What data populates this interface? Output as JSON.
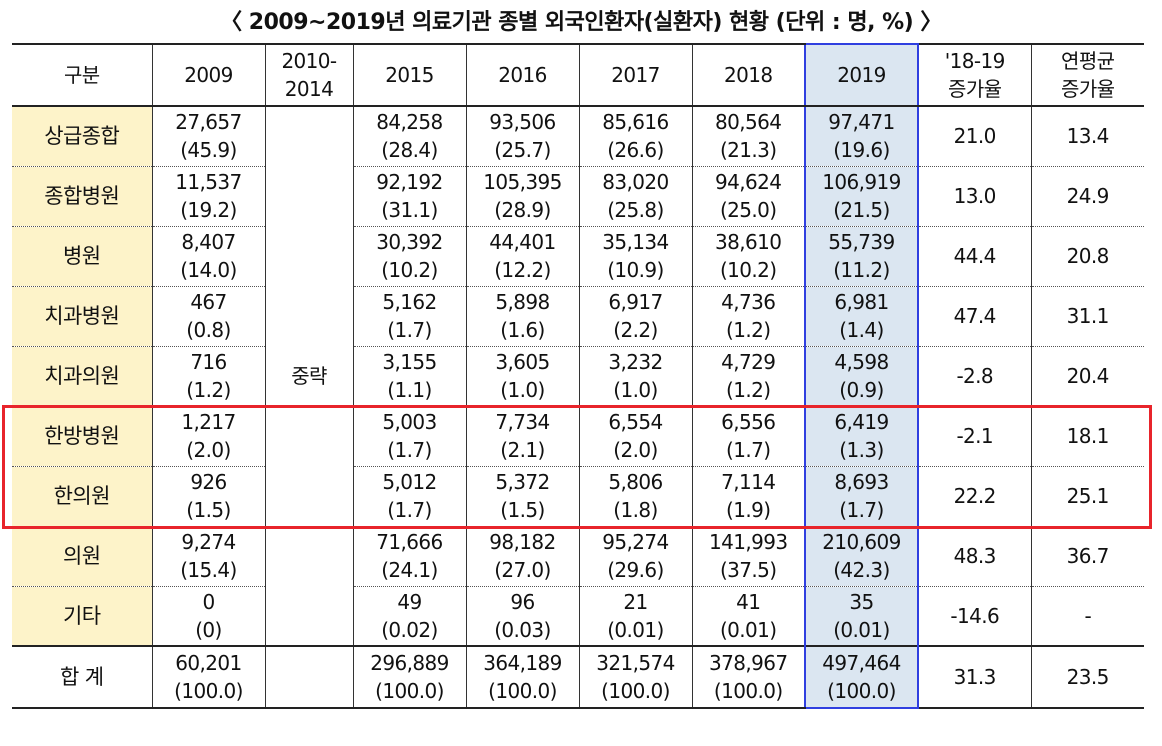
{
  "title": "〈 2009~2019년 의료기관 종별 외국인환자(실환자) 현황 (단위 : 명, %) 〉",
  "headers": {
    "category": "구분",
    "y2009": "2009",
    "y2010_2014_line1": "2010-",
    "y2010_2014_line2": "2014",
    "y2015": "2015",
    "y2016": "2016",
    "y2017": "2017",
    "y2018": "2018",
    "y2019": "2019",
    "growth_line1": "'18-19",
    "growth_line2": "증가율",
    "cagr_line1": "연평균",
    "cagr_line2": "증가율"
  },
  "omitted_label": "중략",
  "rows": [
    {
      "label": "상급종합",
      "y2009": [
        "27,657",
        "(45.9)"
      ],
      "y2015": [
        "84,258",
        "(28.4)"
      ],
      "y2016": [
        "93,506",
        "(25.7)"
      ],
      "y2017": [
        "85,616",
        "(26.6)"
      ],
      "y2018": [
        "80,564",
        "(21.3)"
      ],
      "y2019": [
        "97,471",
        "(19.6)"
      ],
      "growth": "21.0",
      "cagr": "13.4"
    },
    {
      "label": "종합병원",
      "y2009": [
        "11,537",
        "(19.2)"
      ],
      "y2015": [
        "92,192",
        "(31.1)"
      ],
      "y2016": [
        "105,395",
        "(28.9)"
      ],
      "y2017": [
        "83,020",
        "(25.8)"
      ],
      "y2018": [
        "94,624",
        "(25.0)"
      ],
      "y2019": [
        "106,919",
        "(21.5)"
      ],
      "growth": "13.0",
      "cagr": "24.9"
    },
    {
      "label": "병원",
      "y2009": [
        "8,407",
        "(14.0)"
      ],
      "y2015": [
        "30,392",
        "(10.2)"
      ],
      "y2016": [
        "44,401",
        "(12.2)"
      ],
      "y2017": [
        "35,134",
        "(10.9)"
      ],
      "y2018": [
        "38,610",
        "(10.2)"
      ],
      "y2019": [
        "55,739",
        "(11.2)"
      ],
      "growth": "44.4",
      "cagr": "20.8"
    },
    {
      "label": "치과병원",
      "y2009": [
        "467",
        "(0.8)"
      ],
      "y2015": [
        "5,162",
        "(1.7)"
      ],
      "y2016": [
        "5,898",
        "(1.6)"
      ],
      "y2017": [
        "6,917",
        "(2.2)"
      ],
      "y2018": [
        "4,736",
        "(1.2)"
      ],
      "y2019": [
        "6,981",
        "(1.4)"
      ],
      "growth": "47.4",
      "cagr": "31.1"
    },
    {
      "label": "치과의원",
      "y2009": [
        "716",
        "(1.2)"
      ],
      "y2015": [
        "3,155",
        "(1.1)"
      ],
      "y2016": [
        "3,605",
        "(1.0)"
      ],
      "y2017": [
        "3,232",
        "(1.0)"
      ],
      "y2018": [
        "4,729",
        "(1.2)"
      ],
      "y2019": [
        "4,598",
        "(0.9)"
      ],
      "growth": "-2.8",
      "cagr": "20.4"
    },
    {
      "label": "한방병원",
      "y2009": [
        "1,217",
        "(2.0)"
      ],
      "y2015": [
        "5,003",
        "(1.7)"
      ],
      "y2016": [
        "7,734",
        "(2.1)"
      ],
      "y2017": [
        "6,554",
        "(2.0)"
      ],
      "y2018": [
        "6,556",
        "(1.7)"
      ],
      "y2019": [
        "6,419",
        "(1.3)"
      ],
      "growth": "-2.1",
      "cagr": "18.1"
    },
    {
      "label": "한의원",
      "y2009": [
        "926",
        "(1.5)"
      ],
      "y2015": [
        "5,012",
        "(1.7)"
      ],
      "y2016": [
        "5,372",
        "(1.5)"
      ],
      "y2017": [
        "5,806",
        "(1.8)"
      ],
      "y2018": [
        "7,114",
        "(1.9)"
      ],
      "y2019": [
        "8,693",
        "(1.7)"
      ],
      "growth": "22.2",
      "cagr": "25.1"
    },
    {
      "label": "의원",
      "y2009": [
        "9,274",
        "(15.4)"
      ],
      "y2015": [
        "71,666",
        "(24.1)"
      ],
      "y2016": [
        "98,182",
        "(27.0)"
      ],
      "y2017": [
        "95,274",
        "(29.6)"
      ],
      "y2018": [
        "141,993",
        "(37.5)"
      ],
      "y2019": [
        "210,609",
        "(42.3)"
      ],
      "growth": "48.3",
      "cagr": "36.7"
    },
    {
      "label": "기타",
      "y2009": [
        "0",
        "(0)"
      ],
      "y2015": [
        "49",
        "(0.02)"
      ],
      "y2016": [
        "96",
        "(0.03)"
      ],
      "y2017": [
        "21",
        "(0.01)"
      ],
      "y2018": [
        "41",
        "(0.01)"
      ],
      "y2019": [
        "35",
        "(0.01)"
      ],
      "growth": "-14.6",
      "cagr": "-"
    }
  ],
  "total": {
    "label": "합 계",
    "y2009": [
      "60,201",
      "(100.0)"
    ],
    "y2015": [
      "296,889",
      "(100.0)"
    ],
    "y2016": [
      "364,189",
      "(100.0)"
    ],
    "y2017": [
      "321,574",
      "(100.0)"
    ],
    "y2018": [
      "378,967",
      "(100.0)"
    ],
    "y2019": [
      "497,464",
      "(100.0)"
    ],
    "growth": "31.3",
    "cagr": "23.5"
  },
  "colors": {
    "row_label_bg": "#fdf3c9",
    "highlight_col_bg": "#dbe6f1",
    "highlight_col_border": "#2f3fe0",
    "highlight_box": "#e8242b"
  }
}
